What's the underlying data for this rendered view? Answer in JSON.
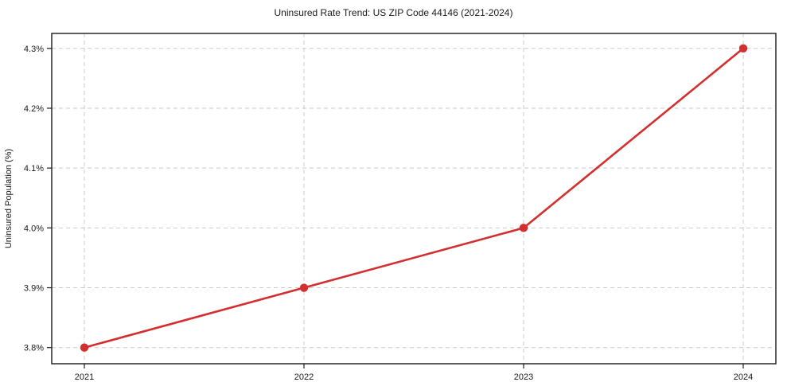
{
  "chart_data": {
    "type": "line",
    "title": "Uninsured Rate Trend: US ZIP Code 44146 (2021-2024)",
    "xlabel": "",
    "ylabel": "Uninsured Population (%)",
    "categories": [
      "2021",
      "2022",
      "2023",
      "2024"
    ],
    "series": [
      {
        "name": "Uninsured Population (%)",
        "values": [
          3.8,
          3.9,
          4.0,
          4.3
        ]
      }
    ],
    "ytick_values": [
      3.8,
      3.9,
      4.0,
      4.1,
      4.2,
      4.3
    ],
    "ytick_labels": [
      "3.8%",
      "3.9%",
      "4.0%",
      "4.1%",
      "4.2%",
      "4.3%"
    ],
    "ylim": [
      3.773,
      4.325
    ],
    "grid": true,
    "legend_position": "none",
    "colors": {
      "line": "#d32f2f",
      "marker": "#d32f2f",
      "gridline": "#c9c9c9",
      "spine": "#1a1a1a",
      "text": "#1a1a1a",
      "background": "#ffffff"
    }
  }
}
